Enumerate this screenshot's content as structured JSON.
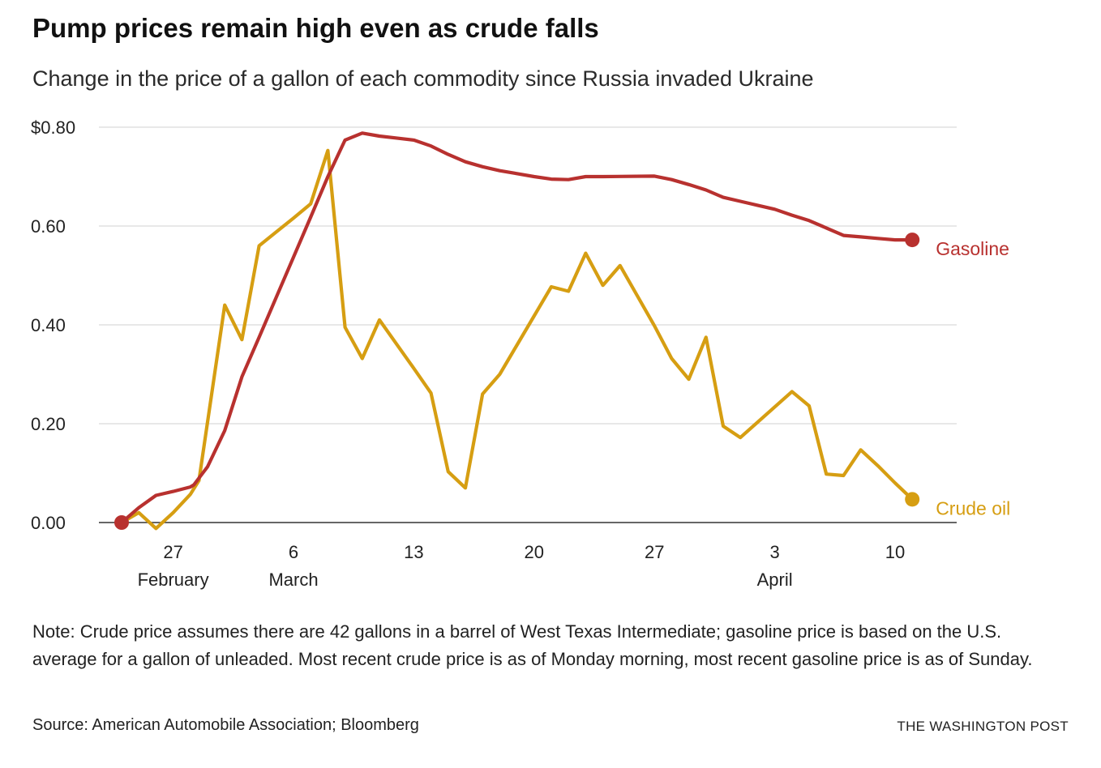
{
  "header": {
    "title": "Pump prices remain high even as crude falls",
    "subtitle": "Change in the price of a gallon of each commodity since Russia invaded Ukraine"
  },
  "footer": {
    "note": "Note: Crude price assumes there are 42 gallons in a barrel of West Texas Intermediate; gasoline price is based on the U.S. average for a gallon of unleaded. Most recent crude price is as of Monday morning, most recent gasoline price is as of Sunday.",
    "source": "Source: American Automobile Association; Bloomberg",
    "credit": "THE WASHINGTON POST"
  },
  "colors": {
    "gasoline": "#b8312f",
    "crude": "#d69e12",
    "grid": "#d9d9d9",
    "baseline": "#333333"
  },
  "chart_data": {
    "type": "line",
    "title": "Pump prices remain high even as crude falls",
    "subtitle": "Change in the price of a gallon of each commodity since Russia invaded Ukraine",
    "xlabel": "",
    "ylabel": "",
    "xlim": [
      23,
      71.5
    ],
    "ylim": [
      0,
      0.8
    ],
    "grid": true,
    "x_unit": "day (Feb 1 = day 1; March 1 = day 29; April 1 = day 60)",
    "y_ticks": [
      {
        "value": 0.8,
        "label": "$0.80"
      },
      {
        "value": 0.6,
        "label": "0.60"
      },
      {
        "value": 0.4,
        "label": "0.40"
      },
      {
        "value": 0.2,
        "label": "0.20"
      },
      {
        "value": 0.0,
        "label": "0.00"
      }
    ],
    "x_ticks": [
      {
        "value": 27,
        "label": "27",
        "sublabel": "February"
      },
      {
        "value": 34,
        "label": "6",
        "sublabel": "March"
      },
      {
        "value": 41,
        "label": "13",
        "sublabel": ""
      },
      {
        "value": 48,
        "label": "20",
        "sublabel": ""
      },
      {
        "value": 55,
        "label": "27",
        "sublabel": ""
      },
      {
        "value": 62,
        "label": "3",
        "sublabel": "April"
      },
      {
        "value": 69,
        "label": "10",
        "sublabel": ""
      }
    ],
    "series": [
      {
        "name": "Gasoline",
        "color": "#b8312f",
        "points": [
          [
            24,
            0.0
          ],
          [
            25,
            0.03
          ],
          [
            26,
            0.055
          ],
          [
            27,
            0.063
          ],
          [
            28,
            0.072
          ],
          [
            28.2,
            0.076
          ],
          [
            29,
            0.113
          ],
          [
            30,
            0.186
          ],
          [
            31,
            0.295
          ],
          [
            32,
            0.375
          ],
          [
            33,
            0.456
          ],
          [
            34,
            0.537
          ],
          [
            35,
            0.618
          ],
          [
            36,
            0.7
          ],
          [
            37,
            0.774
          ],
          [
            38,
            0.788
          ],
          [
            39,
            0.782
          ],
          [
            40,
            0.778
          ],
          [
            41,
            0.774
          ],
          [
            42,
            0.762
          ],
          [
            43,
            0.745
          ],
          [
            44,
            0.73
          ],
          [
            45,
            0.72
          ],
          [
            46,
            0.712
          ],
          [
            47,
            0.706
          ],
          [
            48,
            0.7
          ],
          [
            49,
            0.695
          ],
          [
            50,
            0.694
          ],
          [
            51,
            0.7
          ],
          [
            52,
            0.7
          ],
          [
            55,
            0.701
          ],
          [
            56,
            0.694
          ],
          [
            57,
            0.684
          ],
          [
            58,
            0.673
          ],
          [
            59,
            0.658
          ],
          [
            60,
            0.65
          ],
          [
            61,
            0.642
          ],
          [
            62,
            0.634
          ],
          [
            63,
            0.622
          ],
          [
            64,
            0.611
          ],
          [
            65,
            0.596
          ],
          [
            66,
            0.581
          ],
          [
            67,
            0.578
          ],
          [
            68,
            0.575
          ],
          [
            69,
            0.572
          ],
          [
            70,
            0.572
          ]
        ]
      },
      {
        "name": "Crude oil",
        "color": "#d69e12",
        "points": [
          [
            24,
            0.0
          ],
          [
            25,
            0.02
          ],
          [
            26,
            -0.012
          ],
          [
            27,
            0.02
          ],
          [
            28,
            0.057
          ],
          [
            28.5,
            0.085
          ],
          [
            30,
            0.44
          ],
          [
            31,
            0.37
          ],
          [
            32,
            0.56
          ],
          [
            33,
            0.588
          ],
          [
            34,
            0.616
          ],
          [
            35,
            0.645
          ],
          [
            36,
            0.753
          ],
          [
            37,
            0.395
          ],
          [
            38,
            0.332
          ],
          [
            39,
            0.41
          ],
          [
            40,
            0.361
          ],
          [
            41,
            0.312
          ],
          [
            42,
            0.262
          ],
          [
            43,
            0.103
          ],
          [
            44,
            0.07
          ],
          [
            45,
            0.26
          ],
          [
            46,
            0.3
          ],
          [
            47,
            0.359
          ],
          [
            48,
            0.418
          ],
          [
            49,
            0.477
          ],
          [
            50,
            0.468
          ],
          [
            51,
            0.545
          ],
          [
            52,
            0.48
          ],
          [
            53,
            0.52
          ],
          [
            54,
            0.459
          ],
          [
            55,
            0.398
          ],
          [
            56,
            0.332
          ],
          [
            57,
            0.29
          ],
          [
            58,
            0.375
          ],
          [
            59,
            0.195
          ],
          [
            60,
            0.172
          ],
          [
            61,
            0.203
          ],
          [
            62,
            0.234
          ],
          [
            63,
            0.265
          ],
          [
            64,
            0.236
          ],
          [
            65,
            0.098
          ],
          [
            66,
            0.095
          ],
          [
            67,
            0.147
          ],
          [
            68,
            0.115
          ],
          [
            69,
            0.08
          ],
          [
            70,
            0.047
          ]
        ]
      }
    ]
  }
}
